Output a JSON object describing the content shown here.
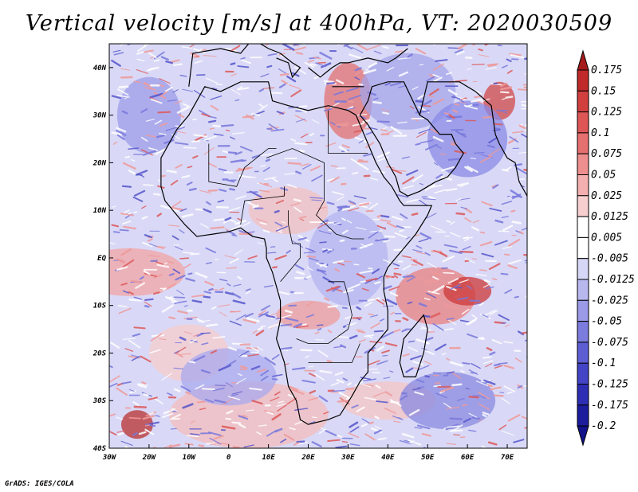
{
  "title": "Vertical velocity [m/s] at 400hPa, VT: 2020030509",
  "credit": "GrADS: IGES/COLA",
  "map": {
    "variable": "Vertical velocity",
    "units": "m/s",
    "level": "400hPa",
    "valid_time": "2020030509",
    "lon_range": [
      -30,
      75
    ],
    "lat_range": [
      -40,
      45
    ],
    "x_ticks": [
      {
        "lon": -30,
        "label": "30W"
      },
      {
        "lon": -20,
        "label": "20W"
      },
      {
        "lon": -10,
        "label": "10W"
      },
      {
        "lon": 0,
        "label": "0"
      },
      {
        "lon": 10,
        "label": "10E"
      },
      {
        "lon": 20,
        "label": "20E"
      },
      {
        "lon": 30,
        "label": "30E"
      },
      {
        "lon": 40,
        "label": "40E"
      },
      {
        "lon": 50,
        "label": "50E"
      },
      {
        "lon": 60,
        "label": "60E"
      },
      {
        "lon": 70,
        "label": "70E"
      }
    ],
    "y_ticks": [
      {
        "lat": 40,
        "label": "40N"
      },
      {
        "lat": 30,
        "label": "30N"
      },
      {
        "lat": 20,
        "label": "20N"
      },
      {
        "lat": 10,
        "label": "10N"
      },
      {
        "lat": 0,
        "label": "EQ"
      },
      {
        "lat": -10,
        "label": "10S"
      },
      {
        "lat": -20,
        "label": "20S"
      },
      {
        "lat": -30,
        "label": "30S"
      },
      {
        "lat": -40,
        "label": "40S"
      }
    ]
  },
  "colorbar": {
    "labels": [
      "0.175",
      "0.15",
      "0.125",
      "0.1",
      "0.075",
      "0.05",
      "0.025",
      "0.0125",
      "0.005",
      "-0.005",
      "-0.0125",
      "-0.025",
      "-0.05",
      "-0.075",
      "-0.1",
      "-0.125",
      "-0.175",
      "-0.2"
    ],
    "colors": [
      "#a51c1c",
      "#c02a2a",
      "#d23f3f",
      "#de5656",
      "#e66f6f",
      "#ee8f8f",
      "#f4b0b0",
      "#f8cfcf",
      "#ffffff",
      "#ffffff",
      "#d6d6f6",
      "#b8b8ee",
      "#9a9ae6",
      "#7c7cde",
      "#5e5ed4",
      "#4444c6",
      "#2e2eb4",
      "#1c1c9c",
      "#12128a"
    ]
  }
}
